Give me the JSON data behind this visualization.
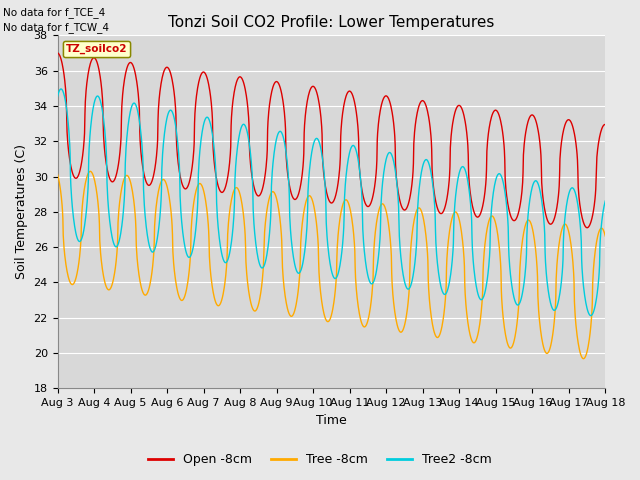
{
  "title": "Tonzi Soil CO2 Profile: Lower Temperatures",
  "xlabel": "Time",
  "ylabel": "Soil Temperatures (C)",
  "ylim": [
    18,
    38
  ],
  "yticks": [
    18,
    20,
    22,
    24,
    26,
    28,
    30,
    32,
    34,
    36,
    38
  ],
  "x_labels": [
    "Aug 3",
    "Aug 4",
    "Aug 5",
    "Aug 6",
    "Aug 7",
    "Aug 8",
    "Aug 9",
    "Aug 10",
    "Aug 11",
    "Aug 12",
    "Aug 13",
    "Aug 14",
    "Aug 15",
    "Aug 16",
    "Aug 17",
    "Aug 18"
  ],
  "annotations": [
    "No data for f_TCE_4",
    "No data for f_TCW_4"
  ],
  "legend_label": "TZ_soilco2",
  "series_labels": [
    "Open -8cm",
    "Tree -8cm",
    "Tree2 -8cm"
  ],
  "series_colors": [
    "#dd0000",
    "#ffaa00",
    "#00ccdd"
  ],
  "background_color": "#e8e8e8",
  "plot_bg_color": "#d8d8d8",
  "grid_color": "#ffffff",
  "title_fontsize": 11,
  "axis_fontsize": 9,
  "tick_fontsize": 8,
  "n_days": 15,
  "samples_per_day": 96
}
